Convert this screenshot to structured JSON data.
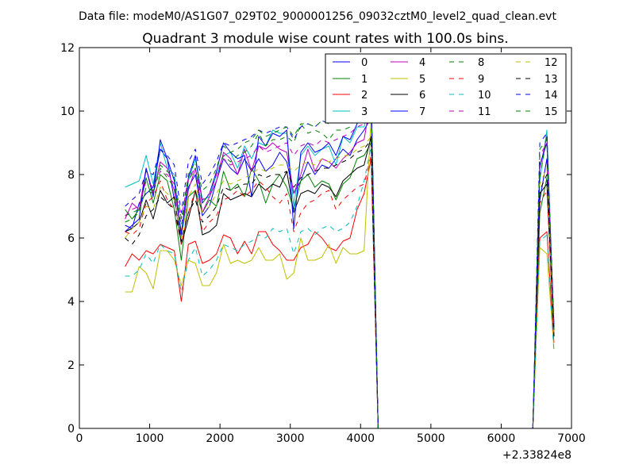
{
  "suptitle": "Data file: modeM0/AS1G07_029T02_9000001256_09032cztM0_level2_quad_clean.evt",
  "chart_data": {
    "type": "line",
    "title": "Quadrant 3 module wise count rates with 100.0s bins.",
    "xlabel": "",
    "ylabel": "",
    "x_offset_label": "+2.33824e8",
    "xlim": [
      0,
      7000
    ],
    "ylim": [
      0,
      12
    ],
    "xticks": [
      0,
      1000,
      2000,
      3000,
      4000,
      5000,
      6000,
      7000
    ],
    "yticks": [
      0,
      2,
      4,
      6,
      8,
      10,
      12
    ],
    "grid": false,
    "legend_position": "top-right",
    "legend_columns": 4,
    "x": [
      650,
      750,
      850,
      950,
      1050,
      1150,
      1250,
      1350,
      1450,
      1550,
      1650,
      1750,
      1850,
      1950,
      2050,
      2150,
      2250,
      2350,
      2450,
      2550,
      2650,
      2750,
      2850,
      2950,
      3050,
      3150,
      3250,
      3350,
      3450,
      3550,
      3650,
      3750,
      3850,
      3950,
      4050,
      4150,
      4250,
      4350,
      4450,
      4550,
      4650,
      4750,
      4850,
      4950,
      5050,
      5150,
      5250,
      5350,
      5450,
      5550,
      5650,
      5750,
      5850,
      5950,
      6050,
      6150,
      6250,
      6350,
      6450,
      6550,
      6650,
      6750
    ],
    "series": [
      {
        "name": "0",
        "color": "#0000ff",
        "dash": "solid",
        "values": [
          6.4,
          6.3,
          7.1,
          7.4,
          7.6,
          8.8,
          8.5,
          7.2,
          6.0,
          7.6,
          8.0,
          6.7,
          7.0,
          7.8,
          8.5,
          8.2,
          8.0,
          8.5,
          8.1,
          8.5,
          8.1,
          8.3,
          8.7,
          8.4,
          7.4,
          7.8,
          8.4,
          8.0,
          8.3,
          8.2,
          8.5,
          8.8,
          8.6,
          9.1,
          9.4,
          9.8,
          0,
          0,
          0,
          0,
          0,
          0,
          0,
          0,
          0,
          0,
          0,
          0,
          0,
          0,
          0,
          0,
          0,
          0,
          0,
          0,
          0,
          0,
          0,
          7.2,
          8.5,
          3.3
        ]
      },
      {
        "name": "1",
        "color": "#008000",
        "dash": "solid",
        "values": [
          6.9,
          6.6,
          6.9,
          7.9,
          7.1,
          8.0,
          7.8,
          6.9,
          5.3,
          7.3,
          7.5,
          6.8,
          7.2,
          7.0,
          8.1,
          7.5,
          7.7,
          7.3,
          8.2,
          7.8,
          7.1,
          7.7,
          8.0,
          7.6,
          6.9,
          7.8,
          8.0,
          7.6,
          7.8,
          7.7,
          7.2,
          7.7,
          7.9,
          8.5,
          8.6,
          9.0,
          0,
          0,
          0,
          0,
          0,
          0,
          0,
          0,
          0,
          0,
          0,
          0,
          0,
          0,
          0,
          0,
          0,
          0,
          0,
          0,
          0,
          0,
          0,
          6.8,
          7.9,
          3.1
        ]
      },
      {
        "name": "2",
        "color": "#ff0000",
        "dash": "solid",
        "values": [
          5.1,
          5.5,
          5.3,
          5.6,
          5.5,
          5.8,
          5.7,
          5.6,
          4.0,
          5.8,
          5.9,
          5.2,
          5.3,
          5.5,
          6.1,
          6.0,
          5.5,
          5.9,
          5.5,
          6.2,
          6.2,
          5.8,
          5.6,
          5.3,
          5.3,
          5.7,
          5.8,
          6.2,
          6.0,
          5.7,
          5.6,
          5.9,
          6.0,
          6.9,
          7.4,
          8.5,
          0,
          0,
          0,
          0,
          0,
          0,
          0,
          0,
          0,
          0,
          0,
          0,
          0,
          0,
          0,
          0,
          0,
          0,
          0,
          0,
          0,
          0,
          0,
          6.0,
          6.2,
          2.7
        ]
      },
      {
        "name": "3",
        "color": "#00bfbf",
        "dash": "solid",
        "values": [
          7.6,
          7.7,
          7.8,
          8.6,
          7.7,
          9.0,
          8.2,
          8.0,
          6.0,
          7.8,
          8.5,
          7.2,
          7.3,
          8.0,
          8.6,
          8.7,
          8.2,
          8.9,
          8.5,
          9.0,
          8.9,
          9.4,
          9.3,
          9.3,
          7.0,
          8.6,
          8.9,
          8.6,
          8.8,
          8.9,
          8.3,
          9.2,
          9.0,
          9.5,
          9.5,
          10.5,
          0,
          0,
          0,
          0,
          0,
          0,
          0,
          0,
          0,
          0,
          0,
          0,
          0,
          0,
          0,
          0,
          0,
          0,
          0,
          0,
          0,
          0,
          0,
          7.8,
          9.4,
          3.1
        ]
      },
      {
        "name": "4",
        "color": "#bf00bf",
        "dash": "solid",
        "values": [
          6.6,
          7.1,
          6.9,
          8.2,
          7.4,
          8.4,
          8.2,
          7.5,
          6.2,
          7.5,
          8.2,
          6.8,
          7.3,
          7.8,
          8.7,
          8.5,
          8.0,
          8.8,
          8.1,
          8.9,
          8.8,
          9.0,
          8.8,
          8.7,
          7.4,
          8.0,
          8.8,
          8.1,
          8.5,
          8.4,
          8.2,
          8.5,
          8.7,
          9.0,
          9.1,
          10.4,
          0,
          0,
          0,
          0,
          0,
          0,
          0,
          0,
          0,
          0,
          0,
          0,
          0,
          0,
          0,
          0,
          0,
          0,
          0,
          0,
          0,
          0,
          0,
          8.2,
          9.2,
          3.0
        ]
      },
      {
        "name": "5",
        "color": "#bfbf00",
        "dash": "solid",
        "values": [
          4.3,
          4.3,
          5.1,
          4.9,
          4.4,
          5.6,
          5.6,
          5.3,
          4.5,
          5.3,
          5.2,
          4.5,
          4.5,
          4.9,
          5.8,
          5.2,
          5.3,
          5.2,
          5.3,
          5.7,
          5.3,
          5.3,
          5.5,
          4.7,
          4.9,
          6.0,
          5.3,
          5.3,
          5.4,
          5.8,
          5.2,
          5.7,
          5.5,
          5.5,
          5.6,
          9.8,
          0,
          0,
          0,
          0,
          0,
          0,
          0,
          0,
          0,
          0,
          0,
          0,
          0,
          0,
          0,
          0,
          0,
          0,
          0,
          0,
          0,
          0,
          0,
          5.7,
          5.5,
          2.5
        ]
      },
      {
        "name": "6",
        "color": "#000000",
        "dash": "solid",
        "values": [
          6.2,
          6.3,
          6.5,
          7.2,
          6.6,
          7.5,
          7.1,
          7.3,
          5.8,
          6.6,
          7.5,
          6.1,
          6.2,
          6.4,
          7.4,
          7.2,
          7.3,
          7.4,
          7.3,
          7.7,
          7.5,
          7.7,
          7.6,
          8.1,
          6.8,
          7.4,
          7.5,
          7.4,
          7.7,
          7.6,
          7.3,
          7.8,
          8.0,
          8.2,
          8.3,
          9.2,
          0,
          0,
          0,
          0,
          0,
          0,
          0,
          0,
          0,
          0,
          0,
          0,
          0,
          0,
          0,
          0,
          0,
          0,
          0,
          0,
          0,
          0,
          0,
          7.4,
          7.7,
          2.9
        ]
      },
      {
        "name": "7",
        "color": "#0000ff",
        "dash": "solid",
        "values": [
          6.2,
          6.4,
          6.6,
          8.2,
          7.3,
          9.1,
          8.5,
          7.8,
          6.1,
          7.9,
          8.6,
          7.1,
          7.4,
          8.1,
          9.0,
          8.7,
          8.5,
          8.6,
          7.3,
          9.2,
          8.9,
          9.3,
          9.2,
          9.4,
          6.3,
          8.7,
          9.0,
          8.7,
          8.8,
          9.0,
          8.6,
          9.2,
          9.1,
          9.6,
          10.1,
          10.6,
          0,
          0,
          0,
          0,
          0,
          0,
          0,
          0,
          0,
          0,
          0,
          0,
          0,
          0,
          0,
          0,
          0,
          0,
          0,
          0,
          0,
          0,
          0,
          8.3,
          9.0,
          3.2
        ]
      },
      {
        "name": "8",
        "color": "#008000",
        "dash": "dashed",
        "values": [
          6.7,
          6.8,
          6.9,
          7.5,
          7.4,
          8.2,
          7.9,
          7.6,
          6.4,
          7.8,
          8.2,
          7.1,
          7.4,
          8.0,
          8.6,
          8.4,
          8.6,
          8.7,
          8.9,
          9.3,
          8.9,
          9.1,
          9.1,
          9.2,
          9.0,
          9.6,
          9.3,
          9.4,
          9.3,
          9.1,
          9.4,
          9.4,
          9.5,
          9.8,
          10.0,
          10.3,
          0,
          0,
          0,
          0,
          0,
          0,
          0,
          0,
          0,
          0,
          0,
          0,
          0,
          0,
          0,
          0,
          0,
          0,
          0,
          0,
          0,
          0,
          0,
          7.9,
          9.2,
          3.2
        ]
      },
      {
        "name": "9",
        "color": "#ff0000",
        "dash": "dashed",
        "values": [
          6.2,
          6.1,
          6.3,
          7.1,
          7.3,
          7.8,
          7.2,
          6.9,
          5.8,
          6.8,
          7.5,
          6.2,
          6.5,
          6.7,
          7.2,
          7.3,
          7.5,
          7.3,
          7.5,
          7.8,
          7.6,
          7.3,
          7.1,
          7.4,
          6.2,
          6.8,
          7.1,
          7.2,
          7.4,
          7.5,
          6.9,
          7.2,
          7.4,
          7.6,
          7.7,
          8.6,
          0,
          0,
          0,
          0,
          0,
          0,
          0,
          0,
          0,
          0,
          0,
          0,
          0,
          0,
          0,
          0,
          0,
          0,
          0,
          0,
          0,
          0,
          0,
          7.1,
          7.5,
          2.9
        ]
      },
      {
        "name": "10",
        "color": "#00bfbf",
        "dash": "dashed",
        "values": [
          4.8,
          4.8,
          5.0,
          5.5,
          5.2,
          5.8,
          5.6,
          5.5,
          4.3,
          5.3,
          5.7,
          4.8,
          5.0,
          5.3,
          5.8,
          5.7,
          5.6,
          5.8,
          5.9,
          6.1,
          6.0,
          6.3,
          6.2,
          6.3,
          5.5,
          6.2,
          6.3,
          6.1,
          6.3,
          6.4,
          6.2,
          6.3,
          6.5,
          7.0,
          7.8,
          8.9,
          0,
          0,
          0,
          0,
          0,
          0,
          0,
          0,
          0,
          0,
          0,
          0,
          0,
          0,
          0,
          0,
          0,
          0,
          0,
          0,
          0,
          0,
          0,
          5.9,
          6.1,
          2.4
        ]
      },
      {
        "name": "11",
        "color": "#bf00bf",
        "dash": "dashed",
        "values": [
          6.7,
          6.9,
          7.0,
          7.8,
          7.6,
          8.1,
          8.0,
          7.7,
          6.6,
          7.9,
          8.2,
          7.2,
          7.4,
          8.0,
          8.5,
          8.3,
          8.4,
          8.5,
          8.6,
          8.9,
          8.7,
          8.8,
          8.9,
          9.0,
          8.6,
          8.9,
          9.0,
          8.9,
          9.1,
          9.0,
          9.1,
          9.2,
          9.3,
          9.5,
          9.6,
          10.0,
          0,
          0,
          0,
          0,
          0,
          0,
          0,
          0,
          0,
          0,
          0,
          0,
          0,
          0,
          0,
          0,
          0,
          0,
          0,
          0,
          0,
          0,
          0,
          8.6,
          9.0,
          3.3
        ]
      },
      {
        "name": "12",
        "color": "#bfbf00",
        "dash": "dashed",
        "values": [
          6.0,
          6.3,
          6.5,
          7.0,
          6.9,
          7.6,
          7.4,
          7.2,
          6.0,
          7.3,
          7.7,
          6.8,
          7.0,
          7.4,
          7.8,
          7.7,
          7.8,
          7.9,
          8.0,
          8.2,
          8.1,
          8.2,
          8.3,
          8.3,
          8.1,
          8.3,
          8.4,
          8.3,
          8.5,
          8.4,
          8.5,
          8.6,
          8.6,
          8.8,
          8.9,
          9.2,
          0,
          0,
          0,
          0,
          0,
          0,
          0,
          0,
          0,
          0,
          0,
          0,
          0,
          0,
          0,
          0,
          0,
          0,
          0,
          0,
          0,
          0,
          0,
          7.7,
          8.2,
          3.0
        ]
      },
      {
        "name": "13",
        "color": "#000000",
        "dash": "dashed",
        "values": [
          6.0,
          5.8,
          6.1,
          6.7,
          6.9,
          7.3,
          7.1,
          6.9,
          5.9,
          6.8,
          7.2,
          6.5,
          6.7,
          7.0,
          7.6,
          7.5,
          7.6,
          7.7,
          7.7,
          8.0,
          7.9,
          8.0,
          8.0,
          8.1,
          7.6,
          7.9,
          8.0,
          8.1,
          8.2,
          8.2,
          8.3,
          8.4,
          8.5,
          8.7,
          8.8,
          9.1,
          0,
          0,
          0,
          0,
          0,
          0,
          0,
          0,
          0,
          0,
          0,
          0,
          0,
          0,
          0,
          0,
          0,
          0,
          0,
          0,
          0,
          0,
          0,
          7.5,
          8.0,
          2.9
        ]
      },
      {
        "name": "14",
        "color": "#0000ff",
        "dash": "dashed",
        "values": [
          7.0,
          7.2,
          7.4,
          8.1,
          8.0,
          8.8,
          8.6,
          8.3,
          6.8,
          8.4,
          8.8,
          7.7,
          8.0,
          8.4,
          9.0,
          8.9,
          9.0,
          9.1,
          9.2,
          9.4,
          9.3,
          9.4,
          9.5,
          9.5,
          9.1,
          9.5,
          9.6,
          9.5,
          9.7,
          9.6,
          9.7,
          9.8,
          9.9,
          10.1,
          10.2,
          10.5,
          0,
          0,
          0,
          0,
          0,
          0,
          0,
          0,
          0,
          0,
          0,
          0,
          0,
          0,
          0,
          0,
          0,
          0,
          0,
          0,
          0,
          0,
          0,
          9.0,
          9.3,
          3.2
        ]
      },
      {
        "name": "15",
        "color": "#008000",
        "dash": "dashed",
        "values": [
          6.5,
          6.6,
          6.8,
          7.6,
          7.5,
          8.3,
          8.1,
          7.9,
          6.6,
          8.0,
          8.4,
          7.5,
          7.7,
          8.2,
          8.9,
          8.7,
          8.8,
          9.0,
          9.1,
          9.4,
          9.2,
          9.3,
          9.4,
          9.5,
          9.2,
          9.6,
          9.6,
          9.5,
          9.7,
          9.6,
          9.7,
          9.8,
          9.9,
          10.0,
          10.1,
          10.4,
          0,
          0,
          0,
          0,
          0,
          0,
          0,
          0,
          0,
          0,
          0,
          0,
          0,
          0,
          0,
          0,
          0,
          0,
          0,
          0,
          0,
          0,
          0,
          8.8,
          9.1,
          3.1
        ]
      }
    ]
  }
}
